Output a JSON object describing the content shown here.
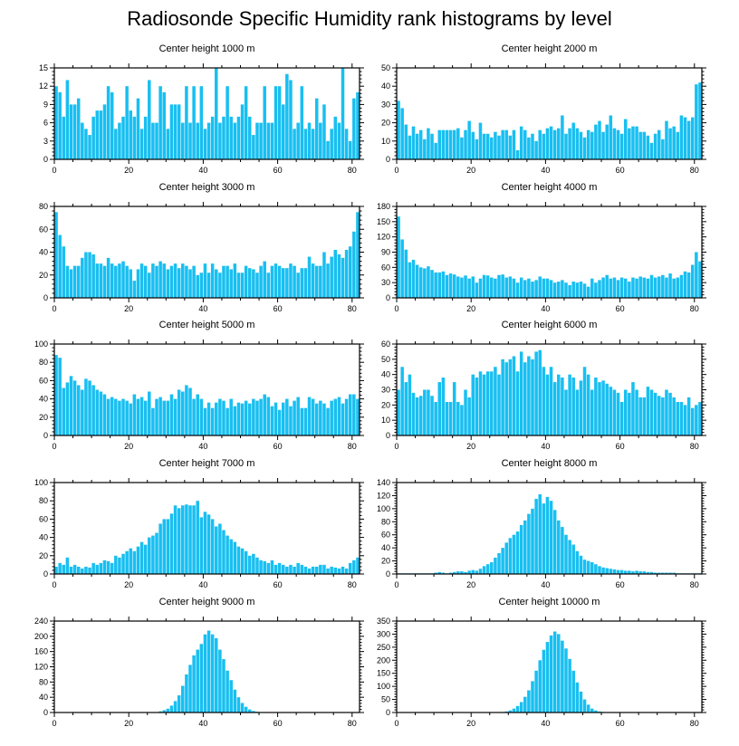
{
  "title": "Radiosonde Specific Humidity rank histograms by level",
  "colors": {
    "bar": "#18bff1",
    "axis": "#000000",
    "background": "#ffffff"
  },
  "chart_data": [
    {
      "type": "bar",
      "title": "Center height 1000 m",
      "xlim": [
        0,
        82
      ],
      "ylim": [
        0,
        15
      ],
      "xticks": [
        0,
        20,
        40,
        60,
        80
      ],
      "yticks": [
        0,
        3,
        6,
        9,
        12,
        15
      ],
      "values": [
        12,
        11,
        7,
        13,
        9,
        9,
        10,
        6,
        5,
        4,
        7,
        8,
        8,
        9,
        12,
        11,
        5,
        6,
        7,
        12,
        8,
        7,
        10,
        5,
        7,
        13,
        6,
        6,
        12,
        11,
        5,
        9,
        9,
        9,
        6,
        12,
        6,
        12,
        6,
        12,
        5,
        6,
        7,
        15,
        6,
        7,
        12,
        7,
        6,
        7,
        9,
        12,
        7,
        4,
        6,
        6,
        12,
        6,
        6,
        12,
        12,
        9,
        14,
        13,
        5,
        6,
        12,
        5,
        6,
        5,
        10,
        6,
        9,
        3,
        5,
        7,
        6,
        15,
        5,
        3,
        10,
        11
      ]
    },
    {
      "type": "bar",
      "title": "Center height 2000 m",
      "xlim": [
        0,
        82
      ],
      "ylim": [
        0,
        50
      ],
      "xticks": [
        0,
        20,
        40,
        60,
        80
      ],
      "yticks": [
        0,
        10,
        20,
        30,
        40,
        50
      ],
      "values": [
        32,
        28,
        19,
        13,
        18,
        14,
        16,
        11,
        17,
        14,
        9,
        16,
        16,
        16,
        16,
        16,
        17,
        12,
        16,
        21,
        15,
        11,
        20,
        14,
        14,
        12,
        15,
        13,
        16,
        16,
        13,
        16,
        5,
        18,
        16,
        12,
        14,
        10,
        16,
        14,
        17,
        18,
        16,
        17,
        24,
        14,
        17,
        20,
        17,
        15,
        12,
        16,
        15,
        19,
        21,
        15,
        19,
        24,
        17,
        16,
        14,
        22,
        17,
        18,
        18,
        15,
        15,
        13,
        9,
        14,
        16,
        11,
        21,
        17,
        18,
        15,
        24,
        23,
        21,
        23,
        41,
        42
      ]
    },
    {
      "type": "bar",
      "title": "Center height 3000 m",
      "xlim": [
        0,
        82
      ],
      "ylim": [
        0,
        80
      ],
      "xticks": [
        0,
        20,
        40,
        60,
        80
      ],
      "yticks": [
        0,
        20,
        40,
        60,
        80
      ],
      "values": [
        75,
        55,
        45,
        28,
        25,
        28,
        28,
        35,
        40,
        40,
        38,
        30,
        30,
        28,
        35,
        30,
        28,
        30,
        32,
        28,
        25,
        15,
        25,
        30,
        28,
        22,
        30,
        28,
        32,
        30,
        25,
        28,
        30,
        26,
        30,
        28,
        25,
        28,
        20,
        22,
        30,
        22,
        30,
        25,
        22,
        28,
        28,
        25,
        30,
        22,
        22,
        28,
        26,
        25,
        22,
        28,
        32,
        22,
        28,
        30,
        28,
        26,
        26,
        30,
        28,
        22,
        26,
        26,
        36,
        30,
        28,
        28,
        40,
        30,
        36,
        42,
        38,
        35,
        42,
        45,
        58,
        75
      ]
    },
    {
      "type": "bar",
      "title": "Center height 4000 m",
      "xlim": [
        0,
        82
      ],
      "ylim": [
        0,
        180
      ],
      "xticks": [
        0,
        20,
        40,
        60,
        80
      ],
      "yticks": [
        0,
        30,
        60,
        90,
        120,
        150,
        180
      ],
      "values": [
        160,
        115,
        95,
        70,
        75,
        65,
        60,
        58,
        62,
        55,
        50,
        50,
        52,
        45,
        48,
        46,
        42,
        40,
        44,
        38,
        42,
        30,
        38,
        45,
        44,
        40,
        38,
        45,
        46,
        40,
        42,
        38,
        30,
        40,
        35,
        38,
        32,
        35,
        42,
        38,
        38,
        35,
        30,
        32,
        35,
        30,
        25,
        32,
        30,
        32,
        28,
        22,
        38,
        30,
        35,
        40,
        45,
        38,
        40,
        35,
        40,
        38,
        32,
        40,
        38,
        42,
        40,
        38,
        45,
        40,
        42,
        45,
        40,
        48,
        38,
        40,
        45,
        52,
        50,
        65,
        90,
        72
      ]
    },
    {
      "type": "bar",
      "title": "Center height 5000 m",
      "xlim": [
        0,
        82
      ],
      "ylim": [
        0,
        100
      ],
      "xticks": [
        0,
        20,
        40,
        60,
        80
      ],
      "yticks": [
        0,
        20,
        40,
        60,
        80,
        100
      ],
      "values": [
        88,
        85,
        52,
        58,
        65,
        60,
        55,
        50,
        62,
        60,
        55,
        50,
        48,
        45,
        40,
        42,
        40,
        38,
        40,
        38,
        35,
        45,
        40,
        42,
        38,
        48,
        30,
        40,
        42,
        38,
        38,
        45,
        40,
        50,
        48,
        55,
        52,
        40,
        45,
        40,
        30,
        36,
        30,
        36,
        40,
        38,
        30,
        40,
        32,
        36,
        35,
        38,
        35,
        40,
        38,
        40,
        45,
        42,
        32,
        36,
        28,
        36,
        40,
        32,
        38,
        42,
        30,
        30,
        42,
        40,
        35,
        38,
        35,
        30,
        38,
        40,
        42,
        35,
        40,
        45,
        45,
        40
      ]
    },
    {
      "type": "bar",
      "title": "Center height 6000 m",
      "xlim": [
        0,
        82
      ],
      "ylim": [
        0,
        60
      ],
      "xticks": [
        0,
        20,
        40,
        60,
        80
      ],
      "yticks": [
        0,
        10,
        20,
        30,
        40,
        50,
        60
      ],
      "values": [
        30,
        45,
        35,
        40,
        28,
        25,
        26,
        30,
        30,
        26,
        22,
        35,
        38,
        22,
        22,
        35,
        22,
        20,
        30,
        25,
        40,
        38,
        42,
        40,
        42,
        42,
        45,
        40,
        50,
        48,
        50,
        52,
        42,
        55,
        48,
        52,
        50,
        55,
        56,
        45,
        40,
        45,
        35,
        40,
        38,
        30,
        40,
        38,
        30,
        36,
        45,
        40,
        30,
        38,
        35,
        36,
        34,
        32,
        30,
        28,
        22,
        30,
        28,
        35,
        30,
        25,
        25,
        32,
        30,
        28,
        26,
        25,
        30,
        28,
        25,
        22,
        22,
        20,
        25,
        18,
        20,
        22
      ]
    },
    {
      "type": "bar",
      "title": "Center height 7000 m",
      "xlim": [
        0,
        82
      ],
      "ylim": [
        0,
        100
      ],
      "xticks": [
        0,
        20,
        40,
        60,
        80
      ],
      "yticks": [
        0,
        20,
        40,
        60,
        80,
        100
      ],
      "values": [
        8,
        12,
        10,
        18,
        8,
        10,
        8,
        6,
        8,
        7,
        12,
        10,
        12,
        15,
        14,
        12,
        20,
        18,
        22,
        25,
        28,
        25,
        30,
        35,
        32,
        40,
        42,
        45,
        55,
        60,
        60,
        66,
        75,
        72,
        75,
        76,
        75,
        75,
        80,
        62,
        68,
        65,
        60,
        52,
        55,
        48,
        42,
        38,
        35,
        30,
        28,
        25,
        20,
        22,
        18,
        15,
        14,
        12,
        15,
        10,
        12,
        10,
        8,
        10,
        8,
        12,
        10,
        8,
        6,
        8,
        8,
        10,
        10,
        6,
        8,
        7,
        6,
        8,
        6,
        12,
        15,
        18
      ]
    },
    {
      "type": "bar",
      "title": "Center height 8000 m",
      "xlim": [
        0,
        82
      ],
      "ylim": [
        0,
        140
      ],
      "xticks": [
        0,
        20,
        40,
        60,
        80
      ],
      "yticks": [
        0,
        20,
        40,
        60,
        80,
        100,
        120,
        140
      ],
      "values": [
        1,
        1,
        1,
        1,
        1,
        1,
        1,
        1,
        1,
        1,
        2,
        3,
        2,
        1,
        2,
        3,
        4,
        4,
        3,
        5,
        6,
        5,
        8,
        12,
        15,
        18,
        25,
        32,
        40,
        48,
        55,
        60,
        65,
        75,
        82,
        92,
        100,
        115,
        122,
        108,
        118,
        112,
        98,
        82,
        72,
        60,
        52,
        45,
        35,
        28,
        22,
        20,
        18,
        15,
        12,
        10,
        9,
        8,
        7,
        6,
        6,
        5,
        5,
        4,
        5,
        4,
        4,
        3,
        3,
        2,
        2,
        2,
        2,
        2,
        2,
        1,
        1,
        1,
        1,
        1,
        1,
        1
      ]
    },
    {
      "type": "bar",
      "title": "Center height 9000 m",
      "xlim": [
        0,
        82
      ],
      "ylim": [
        0,
        240
      ],
      "xticks": [
        0,
        20,
        40,
        60,
        80
      ],
      "yticks": [
        0,
        40,
        80,
        120,
        160,
        200,
        240
      ],
      "values": [
        0,
        0,
        0,
        0,
        0,
        0,
        0,
        0,
        0,
        0,
        0,
        0,
        0,
        0,
        0,
        0,
        0,
        0,
        0,
        0,
        0,
        0,
        0,
        0,
        0,
        0,
        1,
        1,
        3,
        6,
        10,
        18,
        30,
        45,
        70,
        100,
        125,
        150,
        165,
        180,
        205,
        215,
        205,
        195,
        165,
        140,
        110,
        85,
        60,
        40,
        25,
        15,
        8,
        4,
        2,
        1,
        0,
        0,
        0,
        0,
        0,
        0,
        0,
        0,
        0,
        0,
        0,
        0,
        0,
        0,
        0,
        0,
        0,
        0,
        0,
        0,
        0,
        0,
        0,
        0,
        0,
        0
      ]
    },
    {
      "type": "bar",
      "title": "Center height 10000 m",
      "xlim": [
        0,
        82
      ],
      "ylim": [
        0,
        350
      ],
      "xticks": [
        0,
        20,
        40,
        60,
        80
      ],
      "yticks": [
        0,
        50,
        100,
        150,
        200,
        250,
        300,
        350
      ],
      "values": [
        0,
        0,
        0,
        0,
        0,
        0,
        0,
        0,
        0,
        0,
        0,
        0,
        0,
        0,
        0,
        0,
        0,
        0,
        0,
        0,
        0,
        0,
        0,
        0,
        0,
        0,
        0,
        1,
        2,
        4,
        8,
        15,
        25,
        40,
        60,
        85,
        120,
        160,
        200,
        240,
        270,
        295,
        310,
        300,
        275,
        245,
        205,
        160,
        115,
        80,
        50,
        30,
        15,
        8,
        4,
        2,
        1,
        0,
        0,
        0,
        0,
        0,
        0,
        0,
        0,
        0,
        0,
        0,
        0,
        0,
        0,
        0,
        0,
        0,
        0,
        0,
        0,
        0,
        0,
        0,
        0,
        0
      ]
    }
  ]
}
